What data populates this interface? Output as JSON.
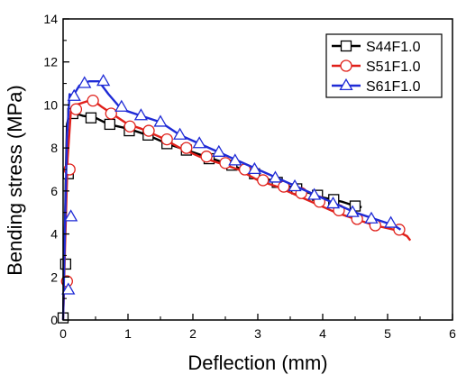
{
  "chart_data": {
    "type": "line",
    "xlabel": "Deflection (mm)",
    "ylabel": "Bending stress (MPa)",
    "xlim": [
      0,
      6
    ],
    "ylim": [
      0,
      14
    ],
    "x_ticks": [
      "0",
      "1",
      "2",
      "3",
      "4",
      "5",
      "6"
    ],
    "y_ticks": [
      "0",
      "2",
      "4",
      "6",
      "8",
      "10",
      "12",
      "14"
    ],
    "legend_position": "top-right",
    "grid": false,
    "series": [
      {
        "name": "S44F1.0",
        "color": "#000000",
        "marker": "square",
        "points": [
          [
            0,
            0
          ],
          [
            0.02,
            2.6
          ],
          [
            0.04,
            6.5
          ],
          [
            0.06,
            9.1
          ],
          [
            0.1,
            9.6
          ],
          [
            0.2,
            9.6
          ],
          [
            0.3,
            9.5
          ],
          [
            0.5,
            9.4
          ],
          [
            0.7,
            9.1
          ],
          [
            1.0,
            8.9
          ],
          [
            1.3,
            8.6
          ],
          [
            1.6,
            8.2
          ],
          [
            2.0,
            7.8
          ],
          [
            2.3,
            7.5
          ],
          [
            2.6,
            7.2
          ],
          [
            3.0,
            6.7
          ],
          [
            3.3,
            6.4
          ],
          [
            3.6,
            6.1
          ],
          [
            4.0,
            5.7
          ],
          [
            4.3,
            5.5
          ],
          [
            4.5,
            5.3
          ],
          [
            4.6,
            5.25
          ]
        ],
        "markers": [
          [
            0.0,
            0.1
          ],
          [
            0.04,
            2.6
          ],
          [
            0.08,
            6.8
          ],
          [
            0.15,
            9.6
          ],
          [
            0.43,
            9.4
          ],
          [
            0.72,
            9.1
          ],
          [
            1.02,
            8.8
          ],
          [
            1.31,
            8.6
          ],
          [
            1.6,
            8.2
          ],
          [
            1.9,
            7.9
          ],
          [
            2.25,
            7.5
          ],
          [
            2.6,
            7.2
          ],
          [
            2.95,
            6.8
          ],
          [
            3.3,
            6.4
          ],
          [
            3.6,
            6.1
          ],
          [
            3.92,
            5.8
          ],
          [
            4.17,
            5.6
          ],
          [
            4.5,
            5.3
          ]
        ]
      },
      {
        "name": "S51F1.0",
        "color": "#e0201a",
        "marker": "circle",
        "points": [
          [
            0,
            0
          ],
          [
            0.03,
            3.5
          ],
          [
            0.07,
            7.5
          ],
          [
            0.12,
            9.7
          ],
          [
            0.2,
            10.0
          ],
          [
            0.3,
            10.1
          ],
          [
            0.45,
            10.25
          ],
          [
            0.6,
            9.9
          ],
          [
            0.8,
            9.5
          ],
          [
            1.0,
            9.1
          ],
          [
            1.2,
            8.9
          ],
          [
            1.5,
            8.5
          ],
          [
            1.8,
            8.0
          ],
          [
            2.1,
            7.6
          ],
          [
            2.4,
            7.3
          ],
          [
            2.7,
            7.0
          ],
          [
            3.0,
            6.5
          ],
          [
            3.3,
            6.2
          ],
          [
            3.6,
            5.8
          ],
          [
            3.9,
            5.4
          ],
          [
            4.2,
            5.0
          ],
          [
            4.5,
            4.7
          ],
          [
            4.8,
            4.4
          ],
          [
            5.1,
            4.2
          ],
          [
            5.3,
            3.9
          ],
          [
            5.35,
            3.7
          ]
        ],
        "markers": [
          [
            0.06,
            1.8
          ],
          [
            0.1,
            7.0
          ],
          [
            0.2,
            9.8
          ],
          [
            0.46,
            10.2
          ],
          [
            0.74,
            9.6
          ],
          [
            1.03,
            9.0
          ],
          [
            1.32,
            8.8
          ],
          [
            1.6,
            8.4
          ],
          [
            1.9,
            8.0
          ],
          [
            2.21,
            7.6
          ],
          [
            2.5,
            7.3
          ],
          [
            2.8,
            7.0
          ],
          [
            3.08,
            6.5
          ],
          [
            3.4,
            6.2
          ],
          [
            3.67,
            5.9
          ],
          [
            3.95,
            5.5
          ],
          [
            4.25,
            5.1
          ],
          [
            4.53,
            4.7
          ],
          [
            4.81,
            4.4
          ],
          [
            5.18,
            4.2
          ]
        ]
      },
      {
        "name": "S61F1.0",
        "color": "#1f2bd6",
        "marker": "triangle",
        "points": [
          [
            0,
            0
          ],
          [
            0.03,
            4.5
          ],
          [
            0.06,
            8.5
          ],
          [
            0.1,
            10.5
          ],
          [
            0.15,
            10.4
          ],
          [
            0.25,
            10.9
          ],
          [
            0.4,
            11.1
          ],
          [
            0.55,
            11.1
          ],
          [
            0.7,
            10.5
          ],
          [
            0.9,
            9.8
          ],
          [
            1.2,
            9.5
          ],
          [
            1.5,
            9.2
          ],
          [
            1.8,
            8.6
          ],
          [
            2.1,
            8.2
          ],
          [
            2.4,
            7.8
          ],
          [
            2.7,
            7.4
          ],
          [
            3.0,
            7.0
          ],
          [
            3.3,
            6.6
          ],
          [
            3.6,
            6.2
          ],
          [
            3.9,
            5.8
          ],
          [
            4.2,
            5.4
          ],
          [
            4.5,
            5.0
          ],
          [
            4.8,
            4.7
          ],
          [
            5.1,
            4.4
          ],
          [
            5.2,
            4.2
          ]
        ],
        "markers": [
          [
            0.08,
            1.4
          ],
          [
            0.12,
            4.8
          ],
          [
            0.17,
            10.4
          ],
          [
            0.33,
            11.0
          ],
          [
            0.62,
            11.1
          ],
          [
            0.9,
            9.9
          ],
          [
            1.2,
            9.5
          ],
          [
            1.5,
            9.2
          ],
          [
            1.8,
            8.6
          ],
          [
            2.1,
            8.2
          ],
          [
            2.4,
            7.8
          ],
          [
            2.65,
            7.4
          ],
          [
            2.95,
            7.0
          ],
          [
            3.27,
            6.6
          ],
          [
            3.57,
            6.2
          ],
          [
            3.87,
            5.8
          ],
          [
            4.16,
            5.4
          ],
          [
            4.46,
            5.0
          ],
          [
            4.75,
            4.7
          ],
          [
            5.05,
            4.5
          ]
        ]
      }
    ]
  }
}
